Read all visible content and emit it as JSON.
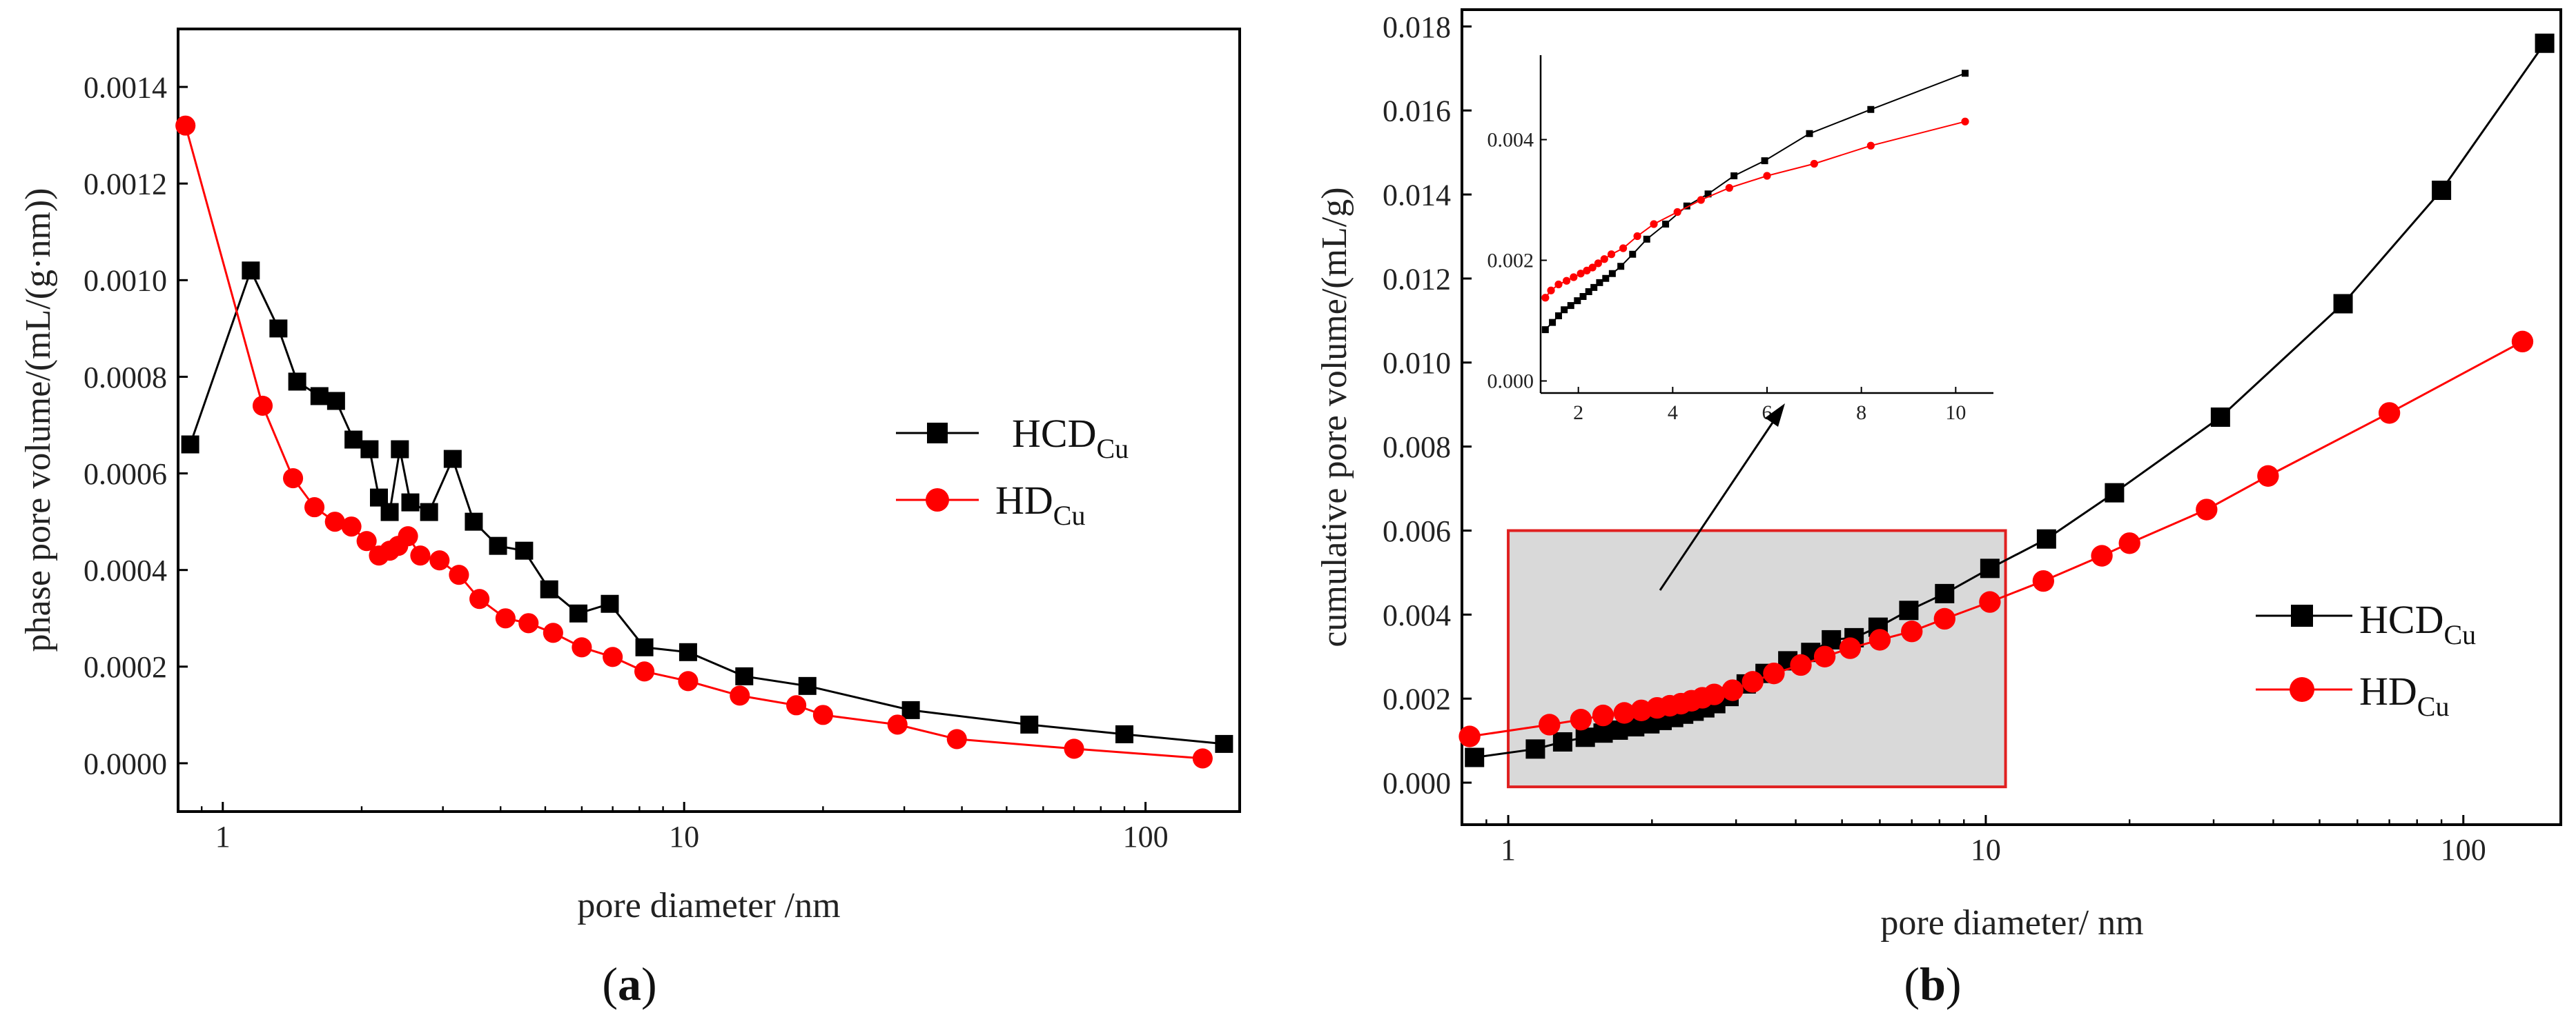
{
  "figure": {
    "panel_a_label": "a",
    "panel_b_label": "b"
  },
  "chart_data": [
    {
      "type": "line",
      "panel": "a",
      "xlabel": "pore diameter /nm",
      "ylabel": "phase pore volume/(mL/(g·nm))",
      "xscale": "log",
      "xlim": [
        0.8,
        160
      ],
      "ylim": [
        -0.0001,
        0.00152
      ],
      "xticks": [
        1,
        10,
        100
      ],
      "xtick_labels": [
        "1",
        "10",
        "100"
      ],
      "yticks": [
        0.0,
        0.0002,
        0.0004,
        0.0006,
        0.0008,
        0.001,
        0.0012,
        0.0014
      ],
      "ytick_labels": [
        "0.0000",
        "0.0002",
        "0.0004",
        "0.0006",
        "0.0008",
        "0.0010",
        "0.0012",
        "0.0014"
      ],
      "legend_position": "center-right",
      "series": [
        {
          "name": "HCD",
          "subscript": "Cu",
          "marker": "square",
          "color": "#000000",
          "x": [
            0.85,
            1.15,
            1.32,
            1.45,
            1.62,
            1.76,
            1.92,
            2.08,
            2.18,
            2.3,
            2.42,
            2.55,
            2.8,
            3.15,
            3.5,
            3.95,
            4.5,
            5.1,
            5.9,
            6.9,
            8.2,
            10.2,
            13.5,
            18.5,
            31,
            56,
            90,
            148
          ],
          "y": [
            0.00066,
            0.00102,
            0.0009,
            0.00079,
            0.00076,
            0.00075,
            0.00067,
            0.00065,
            0.00055,
            0.00052,
            0.00065,
            0.00054,
            0.00052,
            0.00063,
            0.0005,
            0.00045,
            0.00044,
            0.00036,
            0.00031,
            0.00033,
            0.00024,
            0.00023,
            0.00018,
            0.00016,
            0.00011,
            8e-05,
            6e-05,
            4e-05
          ]
        },
        {
          "name": "HD",
          "subscript": "Cu",
          "marker": "circle",
          "color": "#ff0000",
          "x": [
            0.83,
            1.22,
            1.42,
            1.58,
            1.75,
            1.9,
            2.05,
            2.18,
            2.3,
            2.4,
            2.52,
            2.68,
            2.95,
            3.25,
            3.6,
            4.1,
            4.6,
            5.2,
            6.0,
            7.0,
            8.2,
            10.2,
            13.2,
            17.5,
            20,
            29,
            39,
            70,
            133
          ],
          "y": [
            0.00132,
            0.00074,
            0.00059,
            0.00053,
            0.0005,
            0.00049,
            0.00046,
            0.00043,
            0.00044,
            0.00045,
            0.00047,
            0.00043,
            0.00042,
            0.00039,
            0.00034,
            0.0003,
            0.00029,
            0.00027,
            0.00024,
            0.00022,
            0.00019,
            0.00017,
            0.00014,
            0.00012,
            0.0001,
            8e-05,
            5e-05,
            3e-05,
            1e-05
          ]
        }
      ]
    },
    {
      "type": "line",
      "panel": "b",
      "xlabel": "pore diameter/ nm",
      "ylabel": "cumulative pore volume/(mL/g)",
      "xscale": "log",
      "xlim": [
        0.8,
        160
      ],
      "ylim": [
        -0.001,
        0.0184
      ],
      "xticks": [
        1,
        10,
        100
      ],
      "xtick_labels": [
        "1",
        "10",
        "100"
      ],
      "yticks": [
        0.0,
        0.002,
        0.004,
        0.006,
        0.008,
        0.01,
        0.012,
        0.014,
        0.016,
        0.018
      ],
      "ytick_labels": [
        "0.000",
        "0.002",
        "0.004",
        "0.006",
        "0.008",
        "0.010",
        "0.012",
        "0.014",
        "0.016",
        "0.018"
      ],
      "legend_position": "center-right",
      "highlight_region": {
        "x": [
          1.0,
          11.0
        ],
        "y": [
          -0.0001,
          0.006
        ],
        "fill": "#d9d9d9",
        "stroke": "#e02020"
      },
      "series": [
        {
          "name": "HCD",
          "subscript": "Cu",
          "marker": "square",
          "color": "#000000",
          "x": [
            0.85,
            1.14,
            1.3,
            1.45,
            1.58,
            1.7,
            1.84,
            1.98,
            2.1,
            2.22,
            2.33,
            2.45,
            2.58,
            2.72,
            2.9,
            3.15,
            3.45,
            3.85,
            4.3,
            4.75,
            5.3,
            5.95,
            6.9,
            8.2,
            10.2,
            13.4,
            18.6,
            31,
            56,
            90,
            148
          ],
          "y": [
            0.0006,
            0.0008,
            0.00097,
            0.00108,
            0.00118,
            0.00125,
            0.00133,
            0.0014,
            0.00148,
            0.00155,
            0.00163,
            0.0017,
            0.00178,
            0.00188,
            0.00205,
            0.00235,
            0.0026,
            0.0029,
            0.0031,
            0.0034,
            0.00345,
            0.0037,
            0.0041,
            0.0045,
            0.0051,
            0.0058,
            0.0069,
            0.0087,
            0.0114,
            0.0141,
            0.0176
          ]
        },
        {
          "name": "HD",
          "subscript": "Cu",
          "marker": "circle",
          "color": "#ff0000",
          "x": [
            0.83,
            1.22,
            1.42,
            1.58,
            1.75,
            1.9,
            2.05,
            2.18,
            2.3,
            2.42,
            2.55,
            2.7,
            2.95,
            3.25,
            3.6,
            4.1,
            4.6,
            5.2,
            6.0,
            7.0,
            8.2,
            10.2,
            13.2,
            17.5,
            20,
            29,
            39,
            70,
            133
          ],
          "y": [
            0.0011,
            0.00138,
            0.0015,
            0.0016,
            0.00166,
            0.00172,
            0.00178,
            0.00183,
            0.00188,
            0.00195,
            0.00202,
            0.0021,
            0.0022,
            0.0024,
            0.0026,
            0.0028,
            0.003,
            0.0032,
            0.0034,
            0.0036,
            0.0039,
            0.0043,
            0.0048,
            0.0054,
            0.0057,
            0.0065,
            0.0073,
            0.0088,
            0.0105
          ]
        }
      ]
    },
    {
      "type": "line",
      "panel": "b-inset",
      "xscale": "linear",
      "xlim": [
        1.2,
        10.8
      ],
      "ylim": [
        -0.0002,
        0.0054
      ],
      "xticks": [
        2,
        4,
        6,
        8,
        10
      ],
      "xtick_labels": [
        "2",
        "4",
        "6",
        "8",
        "10"
      ],
      "yticks": [
        0.0,
        0.002,
        0.004
      ],
      "ytick_labels": [
        "0.000",
        "0.002",
        "0.004"
      ],
      "series": [
        {
          "name": "HCD",
          "marker": "square",
          "color": "#000000",
          "x": [
            1.3,
            1.45,
            1.58,
            1.7,
            1.84,
            1.98,
            2.1,
            2.22,
            2.33,
            2.45,
            2.58,
            2.72,
            2.9,
            3.15,
            3.45,
            3.85,
            4.3,
            4.75,
            5.3,
            5.95,
            6.9,
            8.2,
            10.2
          ],
          "y": [
            0.00085,
            0.00097,
            0.00108,
            0.00118,
            0.00125,
            0.00133,
            0.0014,
            0.00148,
            0.00155,
            0.00163,
            0.0017,
            0.00178,
            0.0019,
            0.0021,
            0.00235,
            0.0026,
            0.0029,
            0.0031,
            0.0034,
            0.00365,
            0.0041,
            0.0045,
            0.0051
          ]
        },
        {
          "name": "HD",
          "marker": "circle",
          "color": "#ff0000",
          "x": [
            1.3,
            1.42,
            1.58,
            1.75,
            1.9,
            2.05,
            2.18,
            2.3,
            2.42,
            2.55,
            2.7,
            2.95,
            3.25,
            3.6,
            4.1,
            4.6,
            5.2,
            6.0,
            7.0,
            8.2,
            10.2
          ],
          "y": [
            0.00138,
            0.0015,
            0.0016,
            0.00166,
            0.00172,
            0.00178,
            0.00183,
            0.00188,
            0.00195,
            0.00202,
            0.0021,
            0.0022,
            0.0024,
            0.0026,
            0.0028,
            0.003,
            0.0032,
            0.0034,
            0.0036,
            0.0039,
            0.0043
          ]
        }
      ]
    }
  ]
}
